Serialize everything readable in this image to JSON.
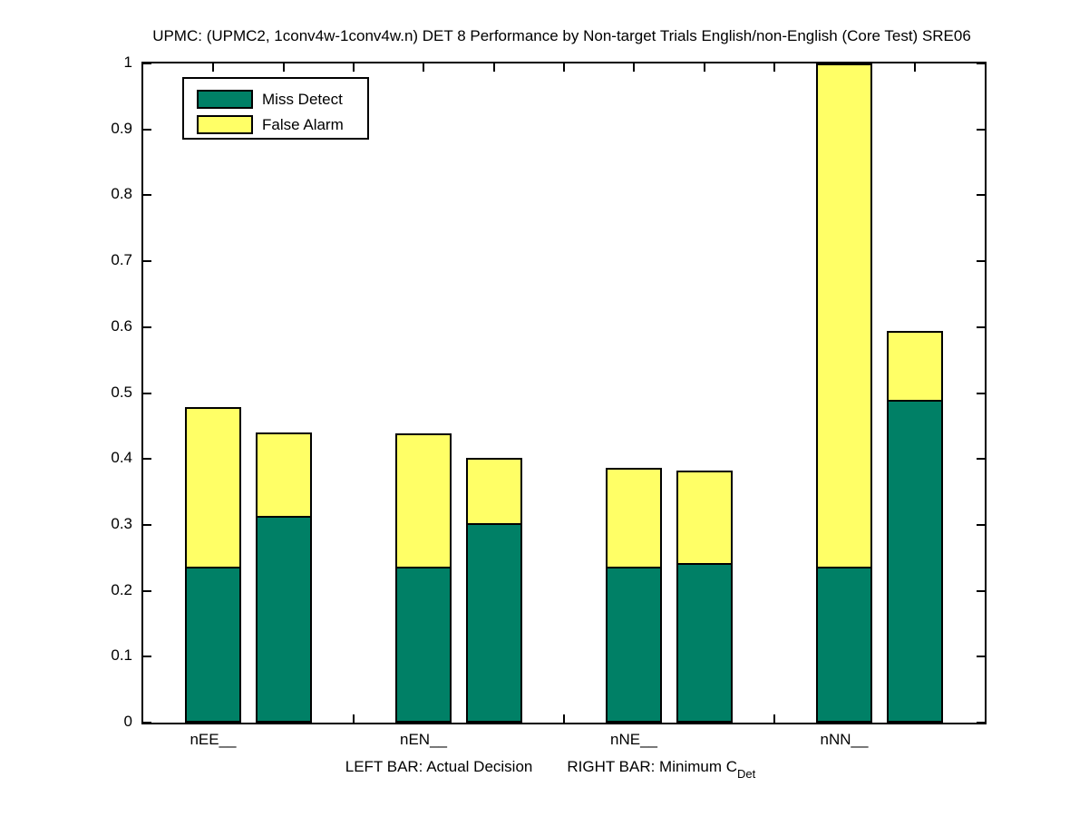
{
  "title": "UPMC: (UPMC2, 1conv4w-1conv4w.n) DET 8 Performance by Non-target Trials English/non-English (Core Test) SRE06",
  "legend": {
    "items": [
      {
        "label": "Miss Detect",
        "color": "#008066"
      },
      {
        "label": "False Alarm",
        "color": "#FFFF66"
      }
    ]
  },
  "xlabel": {
    "left": "LEFT BAR: Actual Decision",
    "right": "RIGHT BAR: Minimum C",
    "right_sub": "Det",
    "full": "LEFT BAR: Actual Decision    RIGHT BAR: Minimum C_Det"
  },
  "chart_data": {
    "type": "bar",
    "variant": "stacked-grouped-pairs",
    "title": "UPMC: (UPMC2, 1conv4w-1conv4w.n) DET 8 Performance by Non-target Trials English/non-English (Core Test) SRE06",
    "categories": [
      "nEE__",
      "nEN__",
      "nNE__",
      "nNN__"
    ],
    "pair_labels": [
      "Actual Decision",
      "Minimum C_Det"
    ],
    "stack_order": [
      "Miss Detect",
      "False Alarm"
    ],
    "colors": {
      "miss_detect": "#008066",
      "false_alarm": "#FFFF66"
    },
    "groups": [
      {
        "category": "nEE__",
        "bars": [
          {
            "kind": "actual",
            "miss_detect": 0.236,
            "false_alarm": 0.242,
            "total": 0.478
          },
          {
            "kind": "minimum",
            "miss_detect": 0.313,
            "false_alarm": 0.127,
            "total": 0.44
          }
        ]
      },
      {
        "category": "nEN__",
        "bars": [
          {
            "kind": "actual",
            "miss_detect": 0.236,
            "false_alarm": 0.203,
            "total": 0.439
          },
          {
            "kind": "minimum",
            "miss_detect": 0.303,
            "false_alarm": 0.098,
            "total": 0.401
          }
        ]
      },
      {
        "category": "nNE__",
        "bars": [
          {
            "kind": "actual",
            "miss_detect": 0.236,
            "false_alarm": 0.151,
            "total": 0.387
          },
          {
            "kind": "minimum",
            "miss_detect": 0.242,
            "false_alarm": 0.14,
            "total": 0.382
          }
        ]
      },
      {
        "category": "nNN__",
        "bars": [
          {
            "kind": "actual",
            "miss_detect": 0.236,
            "false_alarm": 0.764,
            "total": 1.0,
            "clipped_at_ylim": true
          },
          {
            "kind": "minimum",
            "miss_detect": 0.49,
            "false_alarm": 0.104,
            "total": 0.594
          }
        ]
      }
    ],
    "ylim": [
      0,
      1
    ],
    "yticks": [
      0,
      0.1,
      0.2,
      0.3,
      0.4,
      0.5,
      0.6,
      0.7,
      0.8,
      0.9,
      1
    ],
    "ytick_labels": [
      "0",
      "0.1",
      "0.2",
      "0.3",
      "0.4",
      "0.5",
      "0.6",
      "0.7",
      "0.8",
      "0.9",
      "1"
    ],
    "grid": false,
    "legend_position": "top-left-inside",
    "ticks_inward_all_edges": true
  }
}
